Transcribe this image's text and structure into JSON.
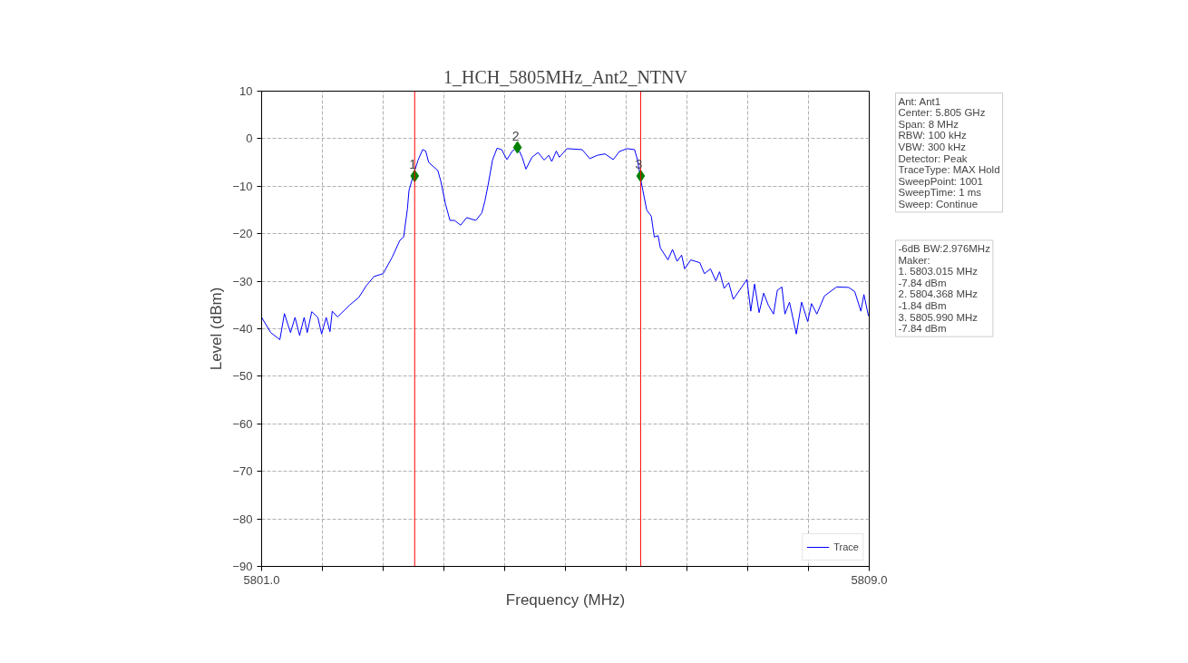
{
  "chart_data": {
    "type": "line",
    "title": "1_HCH_5805MHz_Ant2_NTNV",
    "xlabel": "Frequency (MHz)",
    "ylabel": "Level (dBm)",
    "xlim": [
      5801.0,
      5809.0
    ],
    "ylim": [
      -90,
      10
    ],
    "xticks": [
      {
        "value": 5801.0,
        "label": "5801.0"
      },
      {
        "value": 5801.8,
        "label": null
      },
      {
        "value": 5802.6,
        "label": null
      },
      {
        "value": 5803.4,
        "label": null
      },
      {
        "value": 5804.2,
        "label": null
      },
      {
        "value": 5805.0,
        "label": null
      },
      {
        "value": 5805.8,
        "label": null
      },
      {
        "value": 5806.6,
        "label": null
      },
      {
        "value": 5807.4,
        "label": null
      },
      {
        "value": 5808.2,
        "label": null
      },
      {
        "value": 5809.0,
        "label": "5809.0"
      }
    ],
    "yticks": [
      -90,
      -80,
      -70,
      -60,
      -50,
      -40,
      -30,
      -20,
      -10,
      0,
      10
    ],
    "grid": true,
    "legend": "bottom right",
    "series": [
      {
        "name": "Trace",
        "color": "#0000ff",
        "x": [
          5801.0,
          5801.12,
          5801.24,
          5801.3,
          5801.38,
          5801.44,
          5801.5,
          5801.56,
          5801.6,
          5801.66,
          5801.74,
          5801.79,
          5801.85,
          5801.9,
          5801.93,
          5802.0,
          5802.16,
          5802.28,
          5802.38,
          5802.48,
          5802.6,
          5802.72,
          5802.82,
          5802.87,
          5802.92,
          5802.94,
          5803.01,
          5803.06,
          5803.12,
          5803.16,
          5803.2,
          5803.32,
          5803.36,
          5803.42,
          5803.48,
          5803.54,
          5803.62,
          5803.7,
          5803.82,
          5803.9,
          5803.94,
          5803.98,
          5804.04,
          5804.1,
          5804.16,
          5804.23,
          5804.3,
          5804.37,
          5804.43,
          5804.48,
          5804.56,
          5804.64,
          5804.72,
          5804.78,
          5804.82,
          5804.88,
          5804.92,
          5805.02,
          5805.22,
          5805.32,
          5805.42,
          5805.52,
          5805.63,
          5805.71,
          5805.81,
          5805.91,
          5805.95,
          5805.99,
          5806.07,
          5806.13,
          5806.17,
          5806.22,
          5806.25,
          5806.35,
          5806.41,
          5806.47,
          5806.53,
          5806.57,
          5806.65,
          5806.77,
          5806.83,
          5806.91,
          5806.98,
          5807.03,
          5807.09,
          5807.15,
          5807.21,
          5807.31,
          5807.39,
          5807.44,
          5807.49,
          5807.55,
          5807.61,
          5807.67,
          5807.74,
          5807.79,
          5807.85,
          5807.89,
          5807.95,
          5808.04,
          5808.11,
          5808.19,
          5808.24,
          5808.31,
          5808.41,
          5808.57,
          5808.73,
          5808.81,
          5808.89,
          5808.93,
          5808.99
        ],
        "values": [
          -37.6,
          -40.8,
          -42.3,
          -36.8,
          -40.8,
          -37.6,
          -41.4,
          -37.6,
          -40.8,
          -36.4,
          -37.6,
          -41.1,
          -37.6,
          -40.6,
          -36.3,
          -37.5,
          -35.0,
          -33.4,
          -30.9,
          -29.0,
          -28.4,
          -24.9,
          -21.4,
          -20.7,
          -14.7,
          -10.9,
          -7.0,
          -4.5,
          -2.3,
          -2.6,
          -5.0,
          -6.7,
          -9.0,
          -13.7,
          -17.2,
          -17.2,
          -18.2,
          -16.6,
          -17.2,
          -15.6,
          -13.1,
          -9.9,
          -4.5,
          -2.0,
          -2.3,
          -4.4,
          -2.6,
          -1.8,
          -3.9,
          -6.4,
          -3.9,
          -2.9,
          -4.5,
          -3.5,
          -4.8,
          -2.6,
          -3.9,
          -2.1,
          -2.3,
          -4.2,
          -3.5,
          -3.2,
          -4.4,
          -2.7,
          -2.1,
          -2.3,
          -4.5,
          -8.5,
          -15.0,
          -16.3,
          -20.7,
          -20.4,
          -23.0,
          -25.5,
          -23.3,
          -25.8,
          -24.5,
          -27.4,
          -25.5,
          -26.1,
          -28.4,
          -27.4,
          -29.9,
          -28.0,
          -31.5,
          -30.3,
          -33.8,
          -31.5,
          -29.6,
          -36.3,
          -30.6,
          -36.6,
          -32.5,
          -35.0,
          -36.9,
          -31.9,
          -31.2,
          -36.9,
          -34.4,
          -41.1,
          -34.4,
          -38.5,
          -34.7,
          -36.9,
          -33.1,
          -31.2,
          -31.3,
          -32.2,
          -36.3,
          -32.8,
          -37.3
        ]
      },
      {
        "type": "scatter",
        "marker": "diamond",
        "color": "#008000",
        "x": [
          5803.015,
          5804.368,
          5805.99
        ],
        "values": [
          -7.84,
          -1.84,
          -7.84
        ]
      }
    ],
    "ref_lines": [
      {
        "axis": "x",
        "value": 5803.015,
        "color": "#ff0000"
      },
      {
        "axis": "x",
        "value": 5805.99,
        "color": "#ff0000"
      }
    ],
    "annotations": [
      {
        "text": "1",
        "x": 5803.015,
        "y": -7.84
      },
      {
        "text": "2",
        "x": 5804.368,
        "y": -1.84
      },
      {
        "text": "3",
        "x": 5805.99,
        "y": -7.84
      },
      "Ant: Ant1\nCenter: 5.805 GHz\nSpan: 8 MHz\nRBW: 100 kHz\nVBW: 300 kHz\nDetector: Peak\nTraceType: MAX Hold\nSweepPoint: 1001\nSweepTime: 1 ms\nSweep: Continue",
      "-6dB BW:2.976MHz\nMaker:\n1. 5803.015 MHz\n    -7.84 dBm\n2. 5804.368 MHz\n    -1.84 dBm\n3. 5805.990 MHz\n    -7.84 dBm"
    ]
  }
}
